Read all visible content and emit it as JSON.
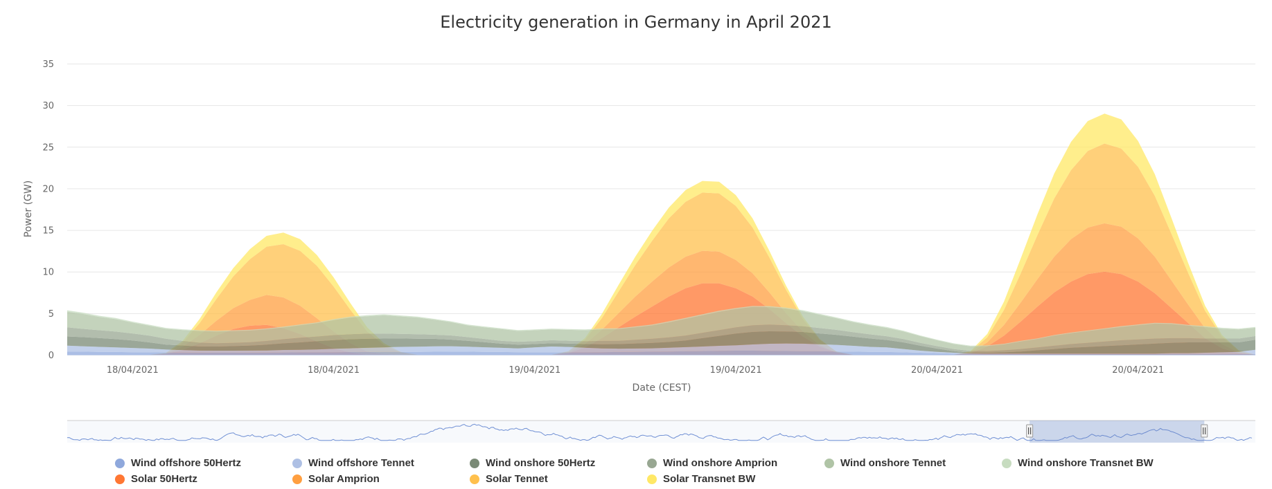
{
  "chart_data": {
    "type": "area",
    "stacking": "normal",
    "title": "Electricity generation in Germany in April 2021",
    "xlabel": "Date (CEST)",
    "ylabel": "Power (GW)",
    "ylim": [
      0,
      35
    ],
    "yticks": [
      0,
      5,
      10,
      15,
      20,
      25,
      30,
      35
    ],
    "grid": true,
    "legend_position": "bottom",
    "x_unit": "hours from first tick",
    "xlim": [
      -3.9,
      67
    ],
    "xticks": [
      {
        "x": 0,
        "label": "18/04/2021"
      },
      {
        "x": 12,
        "label": "18/04/2021"
      },
      {
        "x": 24,
        "label": "19/04/2021"
      },
      {
        "x": 36,
        "label": "19/04/2021"
      },
      {
        "x": 48,
        "label": "20/04/2021"
      },
      {
        "x": 60,
        "label": "20/04/2021"
      }
    ],
    "x_start": -4,
    "x_step": 1,
    "series": [
      {
        "name": "Wind offshore 50Hertz",
        "group": "wind",
        "color": "#8fa8dc",
        "values": [
          0.4,
          0.38,
          0.36,
          0.34,
          0.32,
          0.3,
          0.28,
          0.27,
          0.26,
          0.25,
          0.25,
          0.26,
          0.27,
          0.28,
          0.3,
          0.3,
          0.32,
          0.33,
          0.34,
          0.35,
          0.36,
          0.36,
          0.37,
          0.38,
          0.38,
          0.36,
          0.34,
          0.32,
          0.3,
          0.3,
          0.3,
          0.3,
          0.32,
          0.34,
          0.36,
          0.38,
          0.4,
          0.42,
          0.45,
          0.48,
          0.5,
          0.5,
          0.48,
          0.46,
          0.44,
          0.42,
          0.4,
          0.38,
          0.36,
          0.34,
          0.3,
          0.25,
          0.2,
          0.15,
          0.12,
          0.1,
          0.1,
          0.1,
          0.1,
          0.1,
          0.1,
          0.1,
          0.1,
          0.1,
          0.1,
          0.1,
          0.1,
          0.1,
          0.1,
          0.1,
          0.1,
          0.1
        ]
      },
      {
        "name": "Wind offshore Tennet",
        "group": "wind",
        "color": "#aec0e4",
        "values": [
          0.7,
          0.65,
          0.6,
          0.55,
          0.5,
          0.45,
          0.35,
          0.3,
          0.25,
          0.25,
          0.25,
          0.25,
          0.25,
          0.3,
          0.3,
          0.35,
          0.4,
          0.45,
          0.5,
          0.55,
          0.6,
          0.62,
          0.65,
          0.65,
          0.6,
          0.55,
          0.5,
          0.45,
          0.6,
          0.7,
          0.65,
          0.55,
          0.45,
          0.4,
          0.4,
          0.4,
          0.45,
          0.5,
          0.55,
          0.6,
          0.65,
          0.75,
          0.85,
          0.9,
          0.9,
          0.85,
          0.8,
          0.7,
          0.6,
          0.55,
          0.4,
          0.25,
          0.15,
          0.1,
          0.05,
          0.05,
          0.05,
          0.05,
          0.05,
          0.05,
          0.05,
          0.05,
          0.05,
          0.05,
          0.05,
          0.05,
          0.1,
          0.1,
          0.15,
          0.2,
          0.25,
          0.5
        ]
      },
      {
        "name": "Wind onshore 50Hertz",
        "group": "wind",
        "color": "#7a8a76",
        "values": [
          1.1,
          1.1,
          1.05,
          1.0,
          0.9,
          0.75,
          0.6,
          0.55,
          0.5,
          0.5,
          0.55,
          0.6,
          0.7,
          0.8,
          0.9,
          1.0,
          1.05,
          1.1,
          1.1,
          1.05,
          1.0,
          0.95,
          0.9,
          0.8,
          0.7,
          0.6,
          0.5,
          0.45,
          0.4,
          0.4,
          0.4,
          0.45,
          0.5,
          0.55,
          0.6,
          0.65,
          0.7,
          0.8,
          1.0,
          1.2,
          1.4,
          1.5,
          1.5,
          1.45,
          1.4,
          1.3,
          1.2,
          1.1,
          1.0,
          0.9,
          0.8,
          0.6,
          0.4,
          0.2,
          0.1,
          0.1,
          0.15,
          0.25,
          0.4,
          0.55,
          0.7,
          0.8,
          0.9,
          1.0,
          1.1,
          1.2,
          1.25,
          1.3,
          1.25,
          1.2,
          1.15,
          1.2
        ]
      },
      {
        "name": "Wind onshore Amprion",
        "group": "wind",
        "color": "#98a792",
        "values": [
          1.1,
          1.0,
          0.95,
          0.9,
          0.85,
          0.8,
          0.7,
          0.55,
          0.45,
          0.4,
          0.4,
          0.4,
          0.45,
          0.5,
          0.55,
          0.55,
          0.6,
          0.6,
          0.6,
          0.6,
          0.55,
          0.55,
          0.5,
          0.5,
          0.45,
          0.4,
          0.35,
          0.35,
          0.35,
          0.35,
          0.35,
          0.35,
          0.4,
          0.4,
          0.45,
          0.5,
          0.55,
          0.6,
          0.65,
          0.7,
          0.75,
          0.8,
          0.8,
          0.75,
          0.7,
          0.65,
          0.6,
          0.55,
          0.5,
          0.45,
          0.4,
          0.35,
          0.3,
          0.25,
          0.2,
          0.2,
          0.25,
          0.3,
          0.35,
          0.4,
          0.45,
          0.5,
          0.55,
          0.6,
          0.6,
          0.6,
          0.55,
          0.5,
          0.45,
          0.45,
          0.45,
          0.45
        ]
      },
      {
        "name": "Wind onshore Tennet",
        "group": "wind",
        "color": "#b0c4a6",
        "values": [
          1.9,
          1.8,
          1.6,
          1.5,
          1.3,
          1.2,
          1.2,
          1.3,
          1.4,
          1.4,
          1.4,
          1.4,
          1.4,
          1.4,
          1.5,
          1.6,
          1.8,
          2.0,
          2.1,
          2.2,
          2.1,
          2.0,
          1.8,
          1.6,
          1.4,
          1.4,
          1.4,
          1.3,
          1.3,
          1.3,
          1.3,
          1.3,
          1.4,
          1.4,
          1.5,
          1.6,
          1.8,
          2.0,
          2.1,
          2.2,
          2.2,
          2.2,
          2.1,
          2.0,
          1.8,
          1.6,
          1.4,
          1.2,
          1.1,
          1.0,
          0.9,
          0.8,
          0.7,
          0.6,
          0.55,
          0.6,
          0.7,
          0.9,
          1.0,
          1.2,
          1.3,
          1.4,
          1.5,
          1.6,
          1.7,
          1.8,
          1.7,
          1.5,
          1.4,
          1.2,
          1.1,
          1.0
        ]
      },
      {
        "name": "Wind onshore Transnet BW",
        "group": "wind",
        "color": "#c7dcc0",
        "values": [
          0.15,
          0.15,
          0.14,
          0.13,
          0.12,
          0.12,
          0.1,
          0.1,
          0.1,
          0.1,
          0.1,
          0.1,
          0.1,
          0.1,
          0.1,
          0.1,
          0.12,
          0.12,
          0.12,
          0.12,
          0.12,
          0.12,
          0.1,
          0.1,
          0.1,
          0.1,
          0.1,
          0.1,
          0.1,
          0.1,
          0.1,
          0.1,
          0.1,
          0.1,
          0.1,
          0.1,
          0.12,
          0.12,
          0.12,
          0.12,
          0.12,
          0.12,
          0.12,
          0.12,
          0.12,
          0.1,
          0.1,
          0.1,
          0.1,
          0.1,
          0.1,
          0.08,
          0.08,
          0.08,
          0.08,
          0.08,
          0.08,
          0.08,
          0.08,
          0.08,
          0.08,
          0.08,
          0.08,
          0.1,
          0.1,
          0.1,
          0.1,
          0.1,
          0.1,
          0.1,
          0.1,
          0.1
        ]
      },
      {
        "name": "Solar 50Hertz",
        "group": "solar",
        "color": "#ff7733",
        "values": [
          0,
          0,
          0,
          0,
          0,
          0,
          0.1,
          0.6,
          1.4,
          2.3,
          3.1,
          3.5,
          3.6,
          3.2,
          2.5,
          1.6,
          0.8,
          0.3,
          0,
          0,
          0,
          0,
          0,
          0,
          0,
          0,
          0,
          0,
          0,
          0,
          0.2,
          0.9,
          2.0,
          3.3,
          4.6,
          5.8,
          7.0,
          8.0,
          8.6,
          8.6,
          8.0,
          7.0,
          5.5,
          3.8,
          2.2,
          1.0,
          0.3,
          0,
          0,
          0,
          0,
          0,
          0,
          0,
          0.2,
          1.0,
          2.3,
          4.0,
          5.8,
          7.5,
          8.8,
          9.7,
          10.0,
          9.7,
          8.8,
          7.4,
          5.6,
          3.8,
          2.0,
          0.8,
          0.2,
          0
        ]
      },
      {
        "name": "Solar Amprion",
        "group": "solar",
        "color": "#ff9f40",
        "values": [
          0,
          0,
          0,
          0,
          0,
          0,
          0.05,
          0.4,
          1.0,
          1.8,
          2.5,
          3.1,
          3.6,
          3.7,
          3.4,
          2.8,
          2.0,
          1.1,
          0.4,
          0.1,
          0,
          0,
          0,
          0,
          0,
          0,
          0,
          0,
          0,
          0,
          0.1,
          0.4,
          1.0,
          1.7,
          2.4,
          3.0,
          3.5,
          3.8,
          3.9,
          3.8,
          3.4,
          2.8,
          2.0,
          1.2,
          0.6,
          0.2,
          0,
          0,
          0,
          0,
          0,
          0,
          0,
          0,
          0.1,
          0.5,
          1.3,
          2.3,
          3.3,
          4.3,
          5.1,
          5.6,
          5.8,
          5.7,
          5.2,
          4.4,
          3.3,
          2.2,
          1.2,
          0.5,
          0.1,
          0
        ]
      },
      {
        "name": "Solar Tennet",
        "group": "solar",
        "color": "#ffc04d",
        "values": [
          0,
          0,
          0,
          0,
          0,
          0,
          0.05,
          0.5,
          1.4,
          2.6,
          3.8,
          4.9,
          5.8,
          6.4,
          6.6,
          6.3,
          5.4,
          4.0,
          2.4,
          1.1,
          0.3,
          0,
          0,
          0,
          0,
          0,
          0,
          0,
          0,
          0,
          0.1,
          0.5,
          1.4,
          2.6,
          3.8,
          4.9,
          5.9,
          6.6,
          7.0,
          7.0,
          6.5,
          5.5,
          4.2,
          2.8,
          1.5,
          0.6,
          0.1,
          0,
          0,
          0,
          0,
          0,
          0,
          0,
          0.1,
          0.6,
          1.8,
          3.5,
          5.3,
          7.0,
          8.3,
          9.2,
          9.6,
          9.4,
          8.6,
          7.3,
          5.6,
          3.8,
          2.1,
          0.9,
          0.2,
          0
        ]
      },
      {
        "name": "Solar Transnet BW",
        "group": "solar",
        "color": "#ffe866",
        "values": [
          0,
          0,
          0,
          0,
          0,
          0,
          0.05,
          0.2,
          0.5,
          0.8,
          1.0,
          1.2,
          1.3,
          1.4,
          1.4,
          1.3,
          1.1,
          0.8,
          0.5,
          0.2,
          0.05,
          0,
          0,
          0,
          0,
          0,
          0,
          0,
          0,
          0,
          0.05,
          0.2,
          0.5,
          0.8,
          1.0,
          1.2,
          1.3,
          1.4,
          1.4,
          1.4,
          1.3,
          1.1,
          0.8,
          0.5,
          0.3,
          0.1,
          0,
          0,
          0,
          0,
          0,
          0,
          0,
          0,
          0.05,
          0.4,
          1.0,
          1.8,
          2.5,
          3.0,
          3.4,
          3.6,
          3.6,
          3.5,
          3.1,
          2.6,
          1.9,
          1.2,
          0.6,
          0.2,
          0.05,
          0
        ]
      }
    ],
    "navigator": {
      "selection_from_fraction": 0.81,
      "selection_to_fraction": 0.957,
      "series_color": "#6f8fd4"
    }
  }
}
